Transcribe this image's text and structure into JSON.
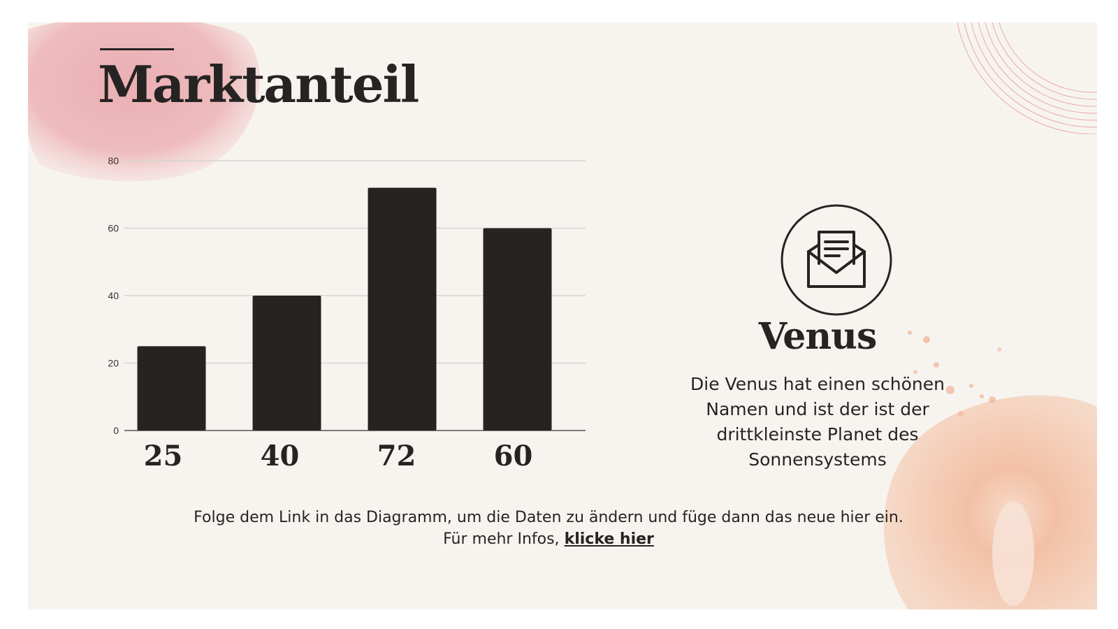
{
  "slide": {
    "title": "Marktanteil",
    "colors": {
      "background": "#f7f4f0",
      "ink": "#262423",
      "pink_wash": "#e8a3a8",
      "peach_wash": "#f2b799",
      "grid": "#d6d4d1"
    }
  },
  "chart_data": {
    "type": "bar",
    "categories": [
      "",
      "",
      "",
      ""
    ],
    "values": [
      25,
      40,
      72,
      60
    ],
    "data_labels": [
      "25",
      "40",
      "72",
      "60"
    ],
    "ylim": [
      0,
      80
    ],
    "yticks": [
      0,
      20,
      40,
      60,
      80
    ],
    "grid": true,
    "title": "",
    "xlabel": "",
    "ylabel": "",
    "bar_color": "#262423"
  },
  "info": {
    "icon": "envelope-letter-icon",
    "title": "Venus",
    "description": "Die Venus hat einen schönen Namen und ist der ist der drittkleinste Planet des Sonnensystems"
  },
  "footer": {
    "text": "Folge dem Link in das Diagramm, um die Daten zu ändern und füge dann das neue hier ein. Für mehr Infos,",
    "link_label": "klicke hier"
  }
}
